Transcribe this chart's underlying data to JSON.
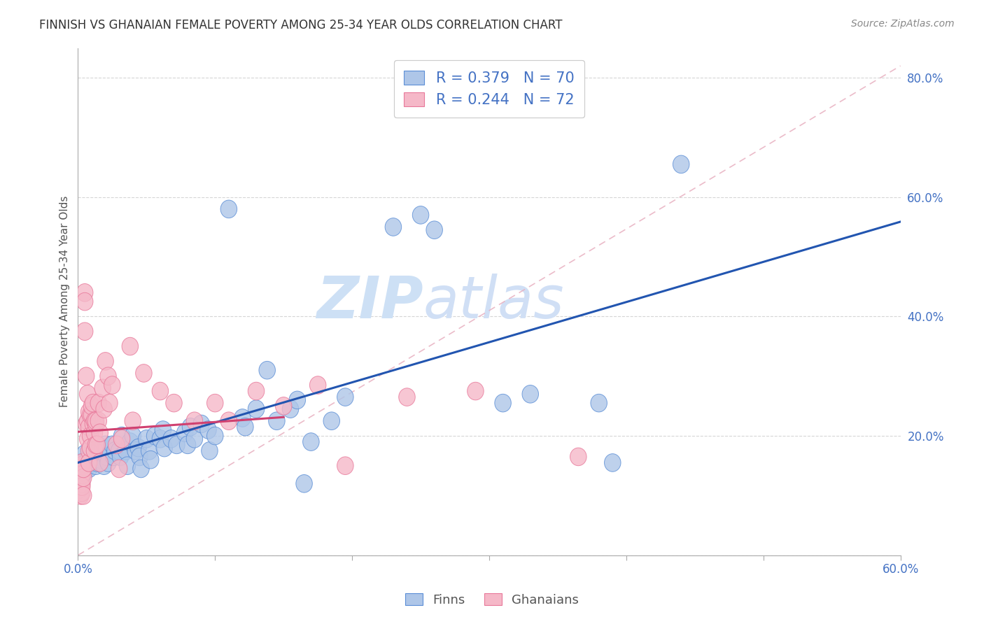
{
  "title": "FINNISH VS GHANAIAN FEMALE POVERTY AMONG 25-34 YEAR OLDS CORRELATION CHART",
  "source": "Source: ZipAtlas.com",
  "ylabel": "Female Poverty Among 25-34 Year Olds",
  "xlim": [
    0.0,
    0.6
  ],
  "ylim": [
    0.0,
    0.85
  ],
  "x_ticks": [
    0.0,
    0.1,
    0.2,
    0.3,
    0.4,
    0.5,
    0.6
  ],
  "x_tick_labels": [
    "0.0%",
    "",
    "",
    "",
    "",
    "",
    "60.0%"
  ],
  "y_ticks": [
    0.0,
    0.2,
    0.4,
    0.6,
    0.8
  ],
  "y_tick_labels": [
    "",
    "20.0%",
    "40.0%",
    "60.0%",
    "80.0%"
  ],
  "finns_color": "#aec6e8",
  "ghanaians_color": "#f5b8c8",
  "finns_edge_color": "#5b8ed6",
  "ghanaians_edge_color": "#e8789a",
  "finns_line_color": "#2255b0",
  "ghanaians_line_color": "#d04070",
  "dashed_line_color": "#e8b0c0",
  "tick_label_color": "#4472c4",
  "watermark_color": "#cde0f5",
  "legend_label_color": "#4472c4",
  "watermark": "ZIPatlas",
  "legend_finns": "R = 0.379   N = 70",
  "legend_ghanaians": "R = 0.244   N = 72",
  "finns_data": [
    [
      0.002,
      0.155
    ],
    [
      0.003,
      0.125
    ],
    [
      0.005,
      0.17
    ],
    [
      0.005,
      0.14
    ],
    [
      0.007,
      0.16
    ],
    [
      0.008,
      0.145
    ],
    [
      0.01,
      0.175
    ],
    [
      0.01,
      0.155
    ],
    [
      0.012,
      0.16
    ],
    [
      0.013,
      0.15
    ],
    [
      0.014,
      0.155
    ],
    [
      0.015,
      0.175
    ],
    [
      0.016,
      0.165
    ],
    [
      0.017,
      0.16
    ],
    [
      0.018,
      0.18
    ],
    [
      0.019,
      0.15
    ],
    [
      0.02,
      0.185
    ],
    [
      0.021,
      0.165
    ],
    [
      0.022,
      0.155
    ],
    [
      0.025,
      0.185
    ],
    [
      0.026,
      0.165
    ],
    [
      0.027,
      0.175
    ],
    [
      0.03,
      0.175
    ],
    [
      0.031,
      0.165
    ],
    [
      0.032,
      0.2
    ],
    [
      0.035,
      0.175
    ],
    [
      0.036,
      0.15
    ],
    [
      0.038,
      0.19
    ],
    [
      0.04,
      0.2
    ],
    [
      0.042,
      0.175
    ],
    [
      0.044,
      0.18
    ],
    [
      0.045,
      0.165
    ],
    [
      0.046,
      0.145
    ],
    [
      0.05,
      0.195
    ],
    [
      0.052,
      0.175
    ],
    [
      0.053,
      0.16
    ],
    [
      0.056,
      0.2
    ],
    [
      0.06,
      0.195
    ],
    [
      0.062,
      0.21
    ],
    [
      0.063,
      0.18
    ],
    [
      0.068,
      0.195
    ],
    [
      0.072,
      0.185
    ],
    [
      0.078,
      0.205
    ],
    [
      0.08,
      0.185
    ],
    [
      0.082,
      0.215
    ],
    [
      0.085,
      0.195
    ],
    [
      0.09,
      0.22
    ],
    [
      0.095,
      0.21
    ],
    [
      0.096,
      0.175
    ],
    [
      0.1,
      0.2
    ],
    [
      0.11,
      0.58
    ],
    [
      0.12,
      0.23
    ],
    [
      0.122,
      0.215
    ],
    [
      0.13,
      0.245
    ],
    [
      0.138,
      0.31
    ],
    [
      0.145,
      0.225
    ],
    [
      0.155,
      0.245
    ],
    [
      0.16,
      0.26
    ],
    [
      0.165,
      0.12
    ],
    [
      0.17,
      0.19
    ],
    [
      0.185,
      0.225
    ],
    [
      0.195,
      0.265
    ],
    [
      0.23,
      0.55
    ],
    [
      0.25,
      0.57
    ],
    [
      0.26,
      0.545
    ],
    [
      0.31,
      0.255
    ],
    [
      0.33,
      0.27
    ],
    [
      0.38,
      0.255
    ],
    [
      0.39,
      0.155
    ],
    [
      0.44,
      0.655
    ]
  ],
  "ghanaians_data": [
    [
      0.001,
      0.135
    ],
    [
      0.001,
      0.145
    ],
    [
      0.001,
      0.11
    ],
    [
      0.001,
      0.125
    ],
    [
      0.002,
      0.105
    ],
    [
      0.002,
      0.15
    ],
    [
      0.002,
      0.115
    ],
    [
      0.002,
      0.1
    ],
    [
      0.002,
      0.13
    ],
    [
      0.003,
      0.14
    ],
    [
      0.003,
      0.12
    ],
    [
      0.003,
      0.105
    ],
    [
      0.003,
      0.155
    ],
    [
      0.003,
      0.135
    ],
    [
      0.003,
      0.115
    ],
    [
      0.004,
      0.13
    ],
    [
      0.004,
      0.1
    ],
    [
      0.004,
      0.145
    ],
    [
      0.005,
      0.375
    ],
    [
      0.005,
      0.44
    ],
    [
      0.005,
      0.425
    ],
    [
      0.006,
      0.22
    ],
    [
      0.006,
      0.3
    ],
    [
      0.007,
      0.27
    ],
    [
      0.007,
      0.225
    ],
    [
      0.007,
      0.195
    ],
    [
      0.008,
      0.175
    ],
    [
      0.008,
      0.24
    ],
    [
      0.008,
      0.215
    ],
    [
      0.008,
      0.155
    ],
    [
      0.009,
      0.235
    ],
    [
      0.009,
      0.2
    ],
    [
      0.009,
      0.18
    ],
    [
      0.01,
      0.235
    ],
    [
      0.01,
      0.25
    ],
    [
      0.011,
      0.22
    ],
    [
      0.011,
      0.255
    ],
    [
      0.012,
      0.205
    ],
    [
      0.012,
      0.225
    ],
    [
      0.012,
      0.175
    ],
    [
      0.013,
      0.22
    ],
    [
      0.013,
      0.185
    ],
    [
      0.013,
      0.225
    ],
    [
      0.014,
      0.185
    ],
    [
      0.015,
      0.225
    ],
    [
      0.015,
      0.255
    ],
    [
      0.016,
      0.205
    ],
    [
      0.016,
      0.155
    ],
    [
      0.018,
      0.28
    ],
    [
      0.019,
      0.245
    ],
    [
      0.02,
      0.325
    ],
    [
      0.022,
      0.3
    ],
    [
      0.023,
      0.255
    ],
    [
      0.025,
      0.285
    ],
    [
      0.028,
      0.185
    ],
    [
      0.03,
      0.145
    ],
    [
      0.032,
      0.195
    ],
    [
      0.038,
      0.35
    ],
    [
      0.04,
      0.225
    ],
    [
      0.048,
      0.305
    ],
    [
      0.06,
      0.275
    ],
    [
      0.07,
      0.255
    ],
    [
      0.085,
      0.225
    ],
    [
      0.1,
      0.255
    ],
    [
      0.11,
      0.225
    ],
    [
      0.13,
      0.275
    ],
    [
      0.15,
      0.25
    ],
    [
      0.175,
      0.285
    ],
    [
      0.195,
      0.15
    ],
    [
      0.24,
      0.265
    ],
    [
      0.29,
      0.275
    ],
    [
      0.365,
      0.165
    ]
  ]
}
